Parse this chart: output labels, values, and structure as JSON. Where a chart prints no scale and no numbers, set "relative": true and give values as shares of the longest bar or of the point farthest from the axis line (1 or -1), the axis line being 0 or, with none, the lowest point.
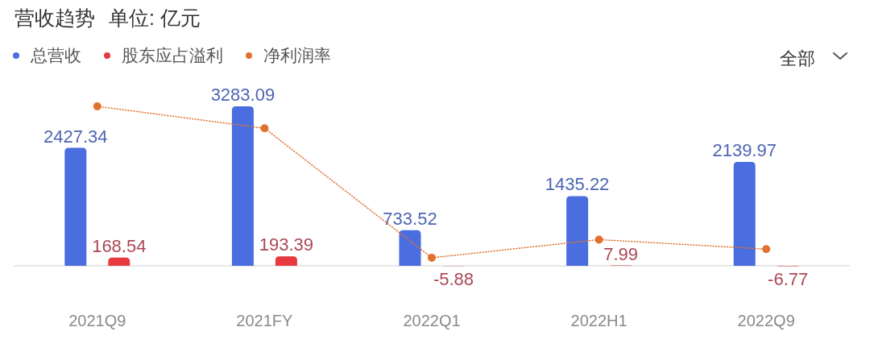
{
  "chart_data": [
    {
      "type": "bar",
      "title": "营收趋势",
      "subtitle": "单位: 亿元",
      "categories": [
        "2021Q9",
        "2021FY",
        "2022Q1",
        "2022H1",
        "2022Q9"
      ],
      "series": [
        {
          "name": "总营收",
          "color": "#4a6de0",
          "values": [
            2427.34,
            3283.09,
            733.52,
            1435.22,
            2139.97
          ],
          "value_labels": [
            "2427.34",
            "3283.09",
            "733.52",
            "1435.22",
            "2139.97"
          ]
        },
        {
          "name": "股东应占溢利",
          "color": "#e63a40",
          "values": [
            168.54,
            193.39,
            -5.88,
            7.99,
            -6.77
          ],
          "value_labels": [
            "168.54",
            "193.39",
            "-5.88",
            "7.99",
            "-6.77"
          ]
        }
      ],
      "legend": "top left",
      "annotations": [
        "全部"
      ]
    },
    {
      "type": "line",
      "relative": true,
      "categories": [
        null,
        null,
        null,
        null,
        null
      ],
      "series": [
        {
          "name": "净利润率",
          "color": "#e2712f",
          "values": [
            1,
            0.855,
            0,
            0.12,
            0.057
          ]
        }
      ],
      "marker": "circle",
      "line_style": "dotted",
      "legend": "top left"
    }
  ]
}
